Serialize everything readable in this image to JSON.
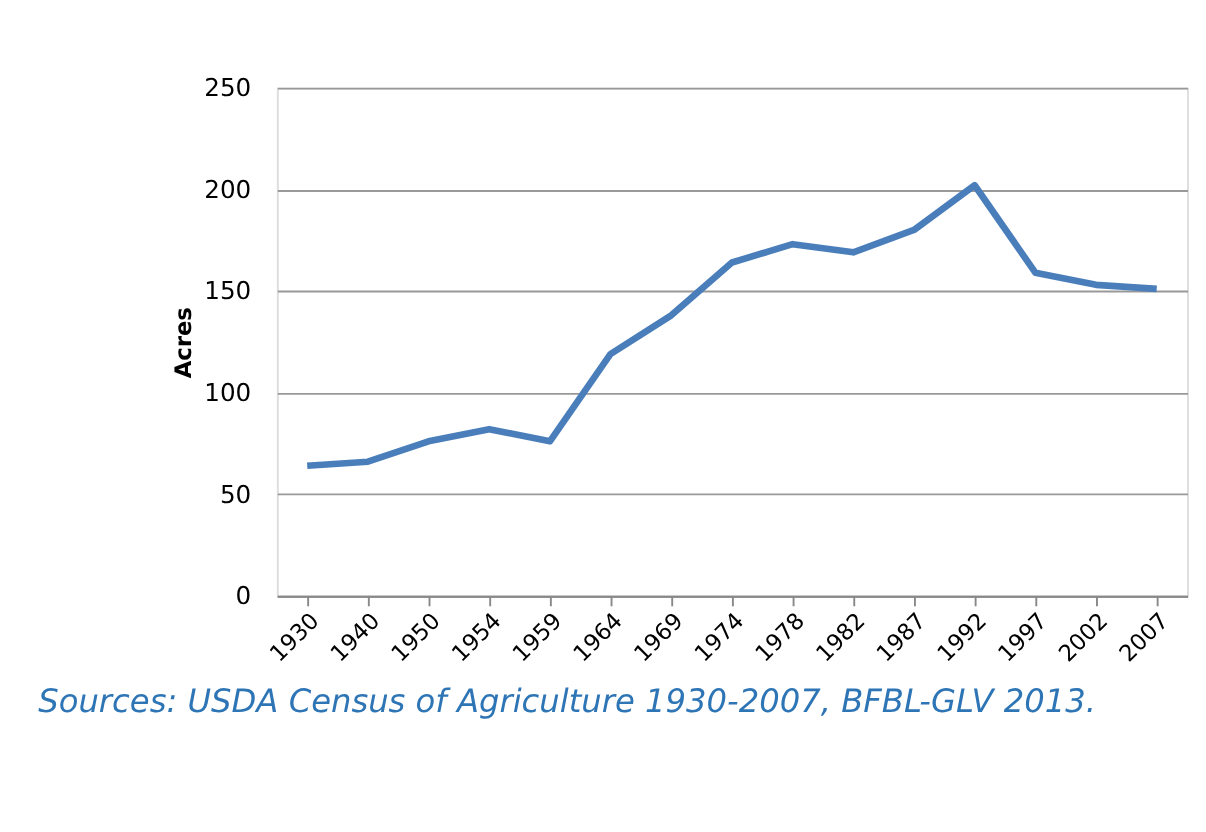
{
  "chart_data": {
    "type": "line",
    "ylabel": "Acres",
    "categories": [
      "1930",
      "1940",
      "1950",
      "1954",
      "1959",
      "1964",
      "1969",
      "1974",
      "1978",
      "1982",
      "1987",
      "1992",
      "1997",
      "2002",
      "2007"
    ],
    "series": [
      {
        "color": "#4a7ebb",
        "values": [
          64,
          66,
          76,
          82,
          76,
          119,
          138,
          164,
          173,
          169,
          180,
          202,
          159,
          153,
          151
        ]
      }
    ],
    "ylim": [
      0,
      250
    ],
    "yticks": [
      0,
      50,
      100,
      150,
      200,
      250
    ],
    "grid": "y",
    "legend": false,
    "marker": "none",
    "line_style": "solid",
    "annotations": [
      "Sources: USDA Census of Agriculture 1930-2007, BFBL-GLV 2013."
    ]
  }
}
